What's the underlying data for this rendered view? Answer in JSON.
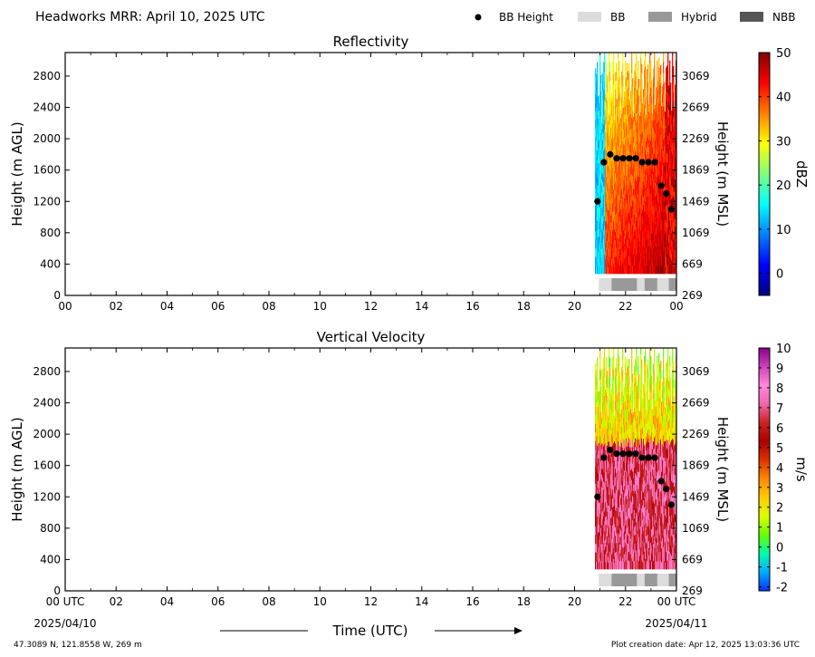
{
  "header": {
    "title": "Headworks MRR:  April 10, 2025 UTC",
    "legend": [
      {
        "label": "BB Height",
        "kind": "dot",
        "color": "#000000"
      },
      {
        "label": "BB",
        "kind": "rect",
        "color": "#dcdcdc"
      },
      {
        "label": "Hybrid",
        "kind": "rect",
        "color": "#999999"
      },
      {
        "label": "NBB",
        "kind": "rect",
        "color": "#555555"
      }
    ]
  },
  "footer": {
    "location": "47.3089 N, 121.8558 W, 269 m",
    "creation": "Plot creation date: Apr 12, 2025 13:03:36 UTC",
    "x_title": "Time (UTC)",
    "start_date": "2025/04/10",
    "end_date": "2025/04/11"
  },
  "chart_data": [
    {
      "type": "heatmap",
      "title": "Reflectivity",
      "ylabel": "Height (m AGL)",
      "ylabel_right": "Height (m MSL)",
      "xlim": [
        0,
        24
      ],
      "ylim": [
        0,
        3100
      ],
      "x_ticks": [
        "00",
        "02",
        "04",
        "06",
        "08",
        "10",
        "12",
        "14",
        "16",
        "18",
        "20",
        "22",
        "00"
      ],
      "y_ticks": [
        0,
        400,
        800,
        1200,
        1600,
        2000,
        2400,
        2800
      ],
      "y_ticks_right": [
        269,
        669,
        1069,
        1469,
        1869,
        2269,
        2669,
        3069
      ],
      "data_x_range": [
        20.8,
        24
      ],
      "colorbar": {
        "label": "dBZ",
        "range": [
          -5,
          50
        ],
        "ticks": [
          0,
          10,
          20,
          30,
          40,
          50
        ],
        "colors": [
          "#00007f",
          "#0000ff",
          "#007fff",
          "#00ffff",
          "#7fff7f",
          "#ffff00",
          "#ff7f00",
          "#ff0000",
          "#7f0000"
        ]
      },
      "bb_height": {
        "x": [
          20.9,
          21.15,
          21.4,
          21.65,
          21.9,
          22.15,
          22.4,
          22.65,
          22.9,
          23.15,
          23.4,
          23.6,
          23.8
        ],
        "y": [
          1200,
          1700,
          1800,
          1750,
          1750,
          1750,
          1750,
          1700,
          1700,
          1700,
          1400,
          1300,
          1100
        ]
      },
      "bb_types": [
        {
          "start": 20.95,
          "end": 21.45,
          "type": "BB"
        },
        {
          "start": 21.45,
          "end": 22.45,
          "type": "Hybrid"
        },
        {
          "start": 22.45,
          "end": 22.75,
          "type": "BB"
        },
        {
          "start": 22.75,
          "end": 23.25,
          "type": "Hybrid"
        },
        {
          "start": 23.25,
          "end": 23.7,
          "type": "BB"
        },
        {
          "start": 23.7,
          "end": 24.0,
          "type": "Hybrid"
        }
      ]
    },
    {
      "type": "heatmap",
      "title": "Vertical Velocity",
      "ylabel": "Height (m AGL)",
      "ylabel_right": "Height (m MSL)",
      "xlim": [
        0,
        24
      ],
      "ylim": [
        0,
        3100
      ],
      "x_ticks": [
        "00 UTC",
        "02",
        "04",
        "06",
        "08",
        "10",
        "12",
        "14",
        "16",
        "18",
        "20",
        "22",
        "00 UTC"
      ],
      "y_ticks": [
        0,
        400,
        800,
        1200,
        1600,
        2000,
        2400,
        2800
      ],
      "y_ticks_right": [
        269,
        669,
        1069,
        1469,
        1869,
        2269,
        2669,
        3069
      ],
      "data_x_range": [
        20.8,
        24
      ],
      "colorbar": {
        "label": "m/s",
        "range": [
          -2.2,
          10
        ],
        "ticks": [
          -2,
          -1,
          0,
          1,
          2,
          3,
          4,
          5,
          6,
          7,
          8,
          9,
          10
        ],
        "colors": [
          "#0033ff",
          "#00aaff",
          "#00ffaa",
          "#66ff00",
          "#ddff00",
          "#ffcc00",
          "#ff8800",
          "#dd3300",
          "#aa0000",
          "#cc2222",
          "#ee66aa",
          "#ff88dd",
          "#cc44bb",
          "#880088"
        ]
      },
      "bb_height": {
        "x": [
          20.9,
          21.15,
          21.4,
          21.65,
          21.9,
          22.15,
          22.4,
          22.65,
          22.9,
          23.15,
          23.4,
          23.6,
          23.8
        ],
        "y": [
          1200,
          1700,
          1800,
          1750,
          1750,
          1750,
          1750,
          1700,
          1700,
          1700,
          1400,
          1300,
          1100
        ]
      },
      "bb_types": [
        {
          "start": 20.95,
          "end": 21.45,
          "type": "BB"
        },
        {
          "start": 21.45,
          "end": 22.45,
          "type": "Hybrid"
        },
        {
          "start": 22.45,
          "end": 22.75,
          "type": "BB"
        },
        {
          "start": 22.75,
          "end": 23.25,
          "type": "Hybrid"
        },
        {
          "start": 23.25,
          "end": 23.7,
          "type": "BB"
        },
        {
          "start": 23.7,
          "end": 24.0,
          "type": "Hybrid"
        }
      ]
    }
  ]
}
